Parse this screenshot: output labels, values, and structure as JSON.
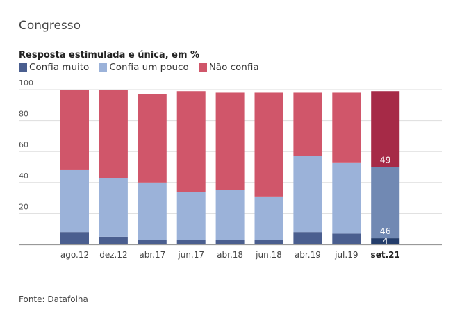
{
  "title": "Congresso",
  "source": "Fonte: Datafolha",
  "colors": {
    "confia_muito": "#4a5e8f",
    "confia_um_pouco": "#9bb2d9",
    "nao_confia": "#d0566a",
    "confia_muito_highlight": "#243d6b",
    "confia_um_pouco_highlight": "#7189b3",
    "nao_confia_highlight": "#a62a47",
    "grid": "#dddddd",
    "axis": "#999999"
  },
  "chart_data": {
    "type": "bar",
    "stacked": true,
    "title": "Congresso",
    "subtitle": "Resposta estimulada e única, em %",
    "xlabel": "",
    "ylabel": "",
    "ylim": [
      0,
      100
    ],
    "yticks": [
      20,
      40,
      60,
      80,
      100
    ],
    "grid": true,
    "legend_position": "top-left",
    "categories": [
      "ago.12",
      "dez.12",
      "abr.17",
      "jun.17",
      "abr.18",
      "jun.18",
      "abr.19",
      "jul.19",
      "set.21"
    ],
    "highlight_category": "set.21",
    "series": [
      {
        "name": "Confia muito",
        "key": "confia_muito",
        "values": [
          8,
          5,
          3,
          3,
          3,
          3,
          8,
          7,
          4
        ]
      },
      {
        "name": "Confia um pouco",
        "key": "confia_um_pouco",
        "values": [
          40,
          38,
          37,
          31,
          32,
          28,
          49,
          46,
          46
        ]
      },
      {
        "name": "Não confia",
        "key": "nao_confia",
        "values": [
          52,
          57,
          57,
          65,
          63,
          67,
          41,
          45,
          49
        ]
      }
    ],
    "data_labels": [
      {
        "category": "set.21",
        "series": "Confia muito",
        "text": "4"
      },
      {
        "category": "set.21",
        "series": "Confia um pouco",
        "text": "46"
      },
      {
        "category": "set.21",
        "series": "Não confia",
        "text": "49"
      }
    ]
  }
}
